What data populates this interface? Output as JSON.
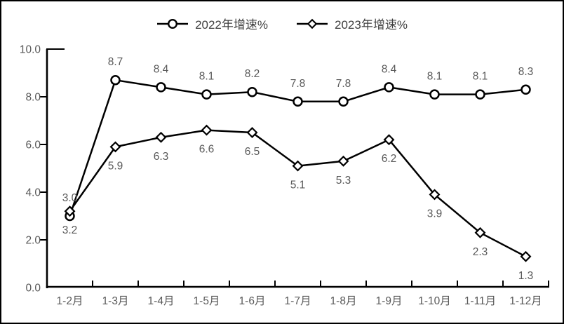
{
  "chart_data": {
    "type": "line",
    "title": "",
    "categories": [
      "1-2月",
      "1-3月",
      "1-4月",
      "1-5月",
      "1-6月",
      "1-7月",
      "1-8月",
      "1-9月",
      "1-10月",
      "1-11月",
      "1-12月"
    ],
    "series": [
      {
        "name": "2022年增速%",
        "marker": "circle",
        "label_position": "above",
        "values": [
          3.0,
          8.7,
          8.4,
          8.1,
          8.2,
          7.8,
          7.8,
          8.4,
          8.1,
          8.1,
          8.3
        ]
      },
      {
        "name": "2023年增速%",
        "marker": "diamond",
        "label_position": "below",
        "values": [
          3.2,
          5.9,
          6.3,
          6.6,
          6.5,
          5.1,
          5.3,
          6.2,
          3.9,
          2.3,
          1.3
        ]
      }
    ],
    "y_axis": {
      "min": 0,
      "max": 10,
      "step": 2,
      "tick_labels": [
        "0.0",
        "2.0",
        "4.0",
        "6.0",
        "8.0",
        "10.0"
      ]
    },
    "x_axis": {
      "tick_labels": [
        "1-2月",
        "1-3月",
        "1-4月",
        "1-5月",
        "1-6月",
        "1-7月",
        "1-8月",
        "1-9月",
        "1-10月",
        "1-11月",
        "1-12月"
      ]
    },
    "legend_position": "top",
    "grid": false,
    "colors": {
      "line": "#000000",
      "marker_fill": "#ffffff",
      "data_label": "#595959",
      "axis_label": "#595959",
      "legend_text": "#3f3f3f",
      "axis_line": "#000000",
      "background": "#ffffff",
      "border": "#000000"
    }
  }
}
